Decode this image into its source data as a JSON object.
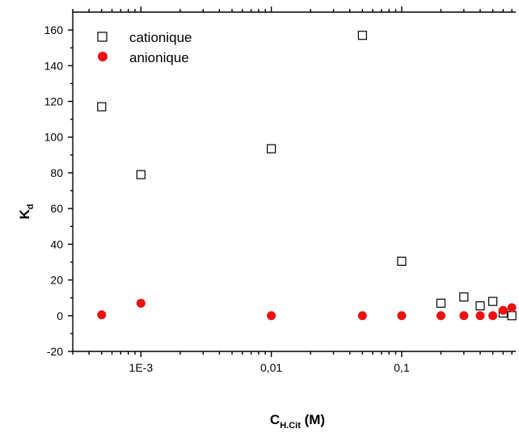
{
  "chart_data": {
    "type": "scatter",
    "xlabel": {
      "main": "C",
      "sub": "H.Cit",
      "unit": " (M)"
    },
    "ylabel": {
      "main": "K",
      "sub": "d"
    },
    "x_scale": "log",
    "xlim": [
      0.0003,
      0.75
    ],
    "ylim": [
      -20,
      170
    ],
    "x_ticks": [
      {
        "value": 0.001,
        "label": "1E-3"
      },
      {
        "value": 0.01,
        "label": "0,01"
      },
      {
        "value": 0.1,
        "label": "0,1"
      }
    ],
    "y_ticks": [
      -20,
      0,
      20,
      40,
      60,
      80,
      100,
      120,
      140,
      160
    ],
    "grid": false,
    "legend_position": "top-left",
    "series": [
      {
        "name": "cationique",
        "marker": "open-square",
        "color": "#000000",
        "points": [
          {
            "x": 0.0005,
            "y": 117
          },
          {
            "x": 0.001,
            "y": 79
          },
          {
            "x": 0.01,
            "y": 93.5
          },
          {
            "x": 0.05,
            "y": 157
          },
          {
            "x": 0.1,
            "y": 30.5
          },
          {
            "x": 0.2,
            "y": 7
          },
          {
            "x": 0.3,
            "y": 10.5
          },
          {
            "x": 0.4,
            "y": 5.5
          },
          {
            "x": 0.5,
            "y": 8
          },
          {
            "x": 0.6,
            "y": 1.5
          },
          {
            "x": 0.7,
            "y": 0
          }
        ]
      },
      {
        "name": "anionique",
        "marker": "filled-circle",
        "color": "#ee1111",
        "points": [
          {
            "x": 0.0005,
            "y": 0.5
          },
          {
            "x": 0.001,
            "y": 7
          },
          {
            "x": 0.01,
            "y": 0
          },
          {
            "x": 0.05,
            "y": 0
          },
          {
            "x": 0.1,
            "y": 0
          },
          {
            "x": 0.2,
            "y": 0
          },
          {
            "x": 0.3,
            "y": 0
          },
          {
            "x": 0.4,
            "y": 0
          },
          {
            "x": 0.5,
            "y": 0
          },
          {
            "x": 0.6,
            "y": 3
          },
          {
            "x": 0.7,
            "y": 4.5
          }
        ]
      }
    ]
  }
}
